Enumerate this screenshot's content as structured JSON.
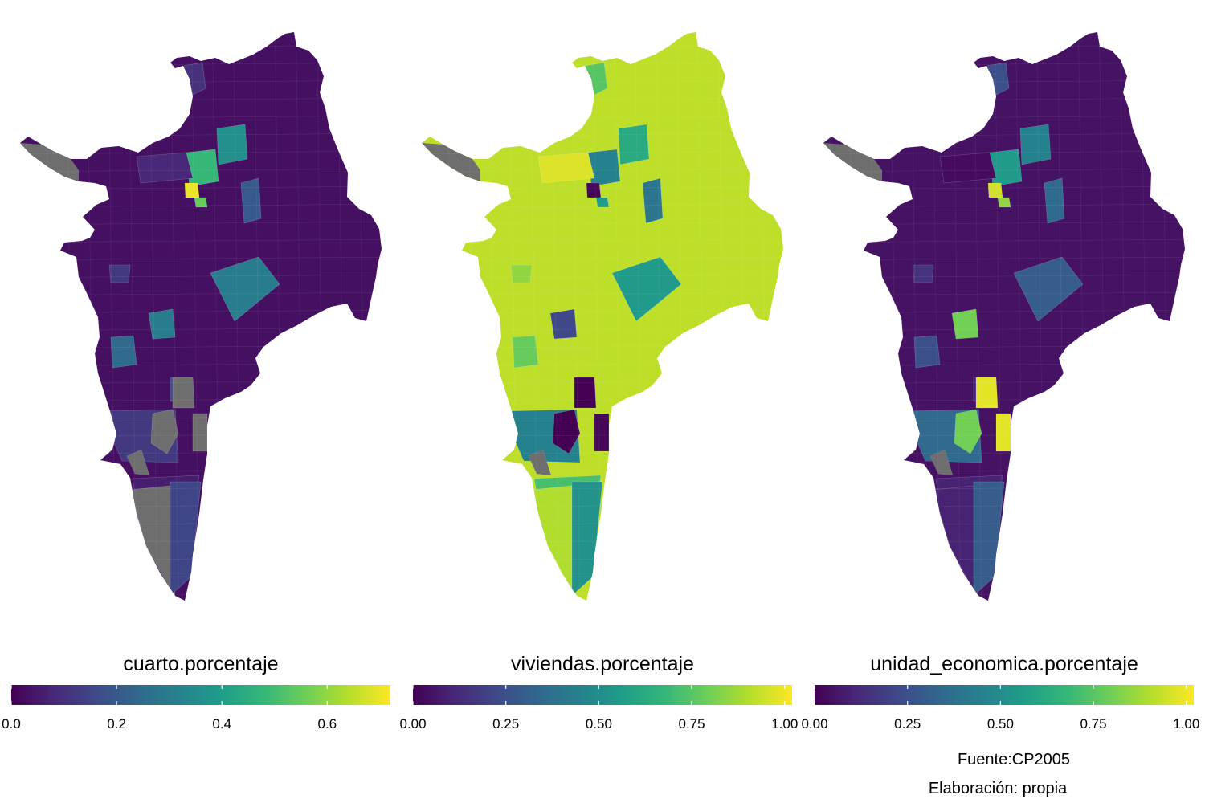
{
  "colors": {
    "viridis": [
      "#440154",
      "#482878",
      "#3e4a89",
      "#31688e",
      "#26828e",
      "#1f9e89",
      "#35b779",
      "#6ece58",
      "#b5de2b",
      "#fde725"
    ],
    "missing": "#6e6e6e",
    "background": "#ffffff"
  },
  "panels": [
    {
      "id": "cuarto",
      "legend": {
        "title": "cuarto.porcentaje",
        "min": 0.0,
        "max": 0.72,
        "ticks": [
          0.0,
          0.2,
          0.4,
          0.6
        ],
        "tick_labels": [
          "0.0",
          "0.2",
          "0.4",
          "0.6"
        ]
      },
      "base_value": 0.03,
      "regions": [
        {
          "value": 0.1
        },
        {
          "value": 0.48
        },
        {
          "value": 0.36
        },
        {
          "value": 0.7
        },
        {
          "value": 0.55
        },
        {
          "value": 0.2
        },
        {
          "value": 0.3
        },
        {
          "value": 0.12
        },
        {
          "value": 0.25
        },
        {
          "value": 0.15
        },
        {
          "value": 0.12
        },
        {
          "value": 0.06
        },
        {
          "value": null
        },
        {
          "value": null
        },
        {
          "value": null
        },
        {
          "value": null
        },
        {
          "value": null
        },
        {
          "value": 0.15
        },
        {
          "value": 0.08
        },
        {
          "value": 0.3
        }
      ]
    },
    {
      "id": "viviendas",
      "legend": {
        "title": "viviendas.porcentaje",
        "min": 0.0,
        "max": 1.02,
        "ticks": [
          0.0,
          0.25,
          0.5,
          0.75,
          1.0
        ],
        "tick_labels": [
          "0.00",
          "0.25",
          "0.50",
          "0.75",
          "1.00"
        ]
      },
      "base_value": 0.92,
      "regions": [
        {
          "value": 0.75
        },
        {
          "value": 0.45
        },
        {
          "value": 0.62
        },
        {
          "value": 0.02
        },
        {
          "value": 0.55
        },
        {
          "value": 0.4
        },
        {
          "value": 0.55
        },
        {
          "value": 0.85
        },
        {
          "value": 0.78
        },
        {
          "value": 0.92
        },
        {
          "value": 0.45
        },
        {
          "value": 0.72
        },
        {
          "value": 0.0
        },
        {
          "value": 0.02
        },
        {
          "value": 0.0
        },
        {
          "value": 0.9
        },
        {
          "value": null
        },
        {
          "value": 0.52
        },
        {
          "value": 0.97
        },
        {
          "value": 0.22
        }
      ]
    },
    {
      "id": "unidad_economica",
      "legend": {
        "title": "unidad_economica.porcentaje",
        "min": 0.0,
        "max": 1.02,
        "ticks": [
          0.0,
          0.25,
          0.5,
          0.75,
          1.0
        ],
        "tick_labels": [
          "0.00",
          "0.25",
          "0.50",
          "0.75",
          "1.00"
        ]
      },
      "base_value": 0.05,
      "regions": [
        {
          "value": 0.25
        },
        {
          "value": 0.55
        },
        {
          "value": 0.45
        },
        {
          "value": 0.95
        },
        {
          "value": 0.85
        },
        {
          "value": 0.35
        },
        {
          "value": 0.3
        },
        {
          "value": 0.15
        },
        {
          "value": 0.25
        },
        {
          "value": 0.1
        },
        {
          "value": 0.35
        },
        {
          "value": 0.1
        },
        {
          "value": 0.8
        },
        {
          "value": 0.98
        },
        {
          "value": 0.98
        },
        {
          "value": 0.1
        },
        {
          "value": null
        },
        {
          "value": 0.3
        },
        {
          "value": 0.03
        },
        {
          "value": 0.8
        }
      ]
    }
  ],
  "caption": {
    "source": "Fuente:CP2005",
    "author": "Elaboración: propia"
  }
}
